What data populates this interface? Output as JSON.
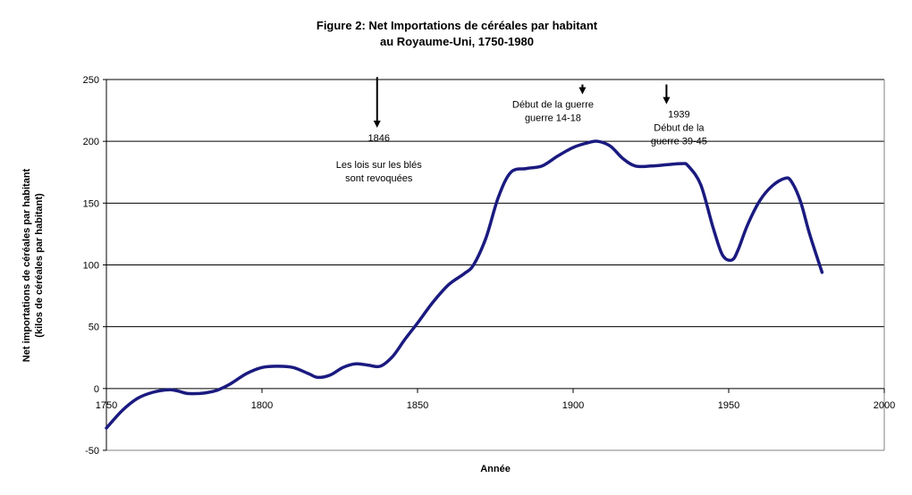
{
  "chart_data": {
    "type": "line",
    "title": [
      "Figure 2: Net Importations de céréales par habitant",
      "au Royaume-Uni, 1750-1980"
    ],
    "xlabel": "Année",
    "ylabel": [
      "Net importations de céréales par habitant",
      "(kilos de céréales par habitant)"
    ],
    "xlim": [
      1750,
      2000
    ],
    "ylim": [
      -50,
      250
    ],
    "xticks": [
      1750,
      1800,
      1850,
      1900,
      1950,
      2000
    ],
    "yticks": [
      -50,
      0,
      50,
      100,
      150,
      200,
      250
    ],
    "grid": "horizontal",
    "colors": {
      "line": "#1a1a80",
      "grid": "#000000",
      "axis": "#808080"
    },
    "series": [
      {
        "x": [
          1750,
          1755,
          1760,
          1765,
          1770,
          1773,
          1776,
          1780,
          1783,
          1786,
          1790,
          1795,
          1800,
          1805,
          1810,
          1815,
          1818,
          1822,
          1826,
          1830,
          1834,
          1838,
          1842,
          1846,
          1850,
          1855,
          1860,
          1865,
          1868,
          1872,
          1876,
          1880,
          1885,
          1890,
          1895,
          1900,
          1905,
          1908,
          1912,
          1916,
          1920,
          1925,
          1930,
          1935,
          1937,
          1941,
          1945,
          1948,
          1951,
          1953,
          1956,
          1960,
          1964,
          1968,
          1970,
          1973,
          1976,
          1980
        ],
        "y": [
          -32,
          -18,
          -8,
          -3,
          -1,
          -2,
          -4,
          -4,
          -3,
          -1,
          4,
          12,
          17,
          18,
          17,
          12,
          9,
          11,
          17,
          20,
          19,
          18,
          26,
          40,
          53,
          70,
          84,
          93,
          100,
          122,
          155,
          175,
          178,
          180,
          188,
          195,
          199,
          200,
          196,
          186,
          180,
          180,
          181,
          182,
          180,
          165,
          130,
          108,
          104,
          112,
          132,
          152,
          164,
          170,
          168,
          152,
          125,
          94
        ]
      }
    ],
    "annotations": [
      {
        "x": 1837,
        "arrow_from": 252,
        "arrow_to": 211,
        "lines": [
          "1846",
          "",
          "Les lois sur les blés",
          "sont revoquées"
        ]
      },
      {
        "x": 1903,
        "arrow_from": 246,
        "arrow_to": 238,
        "lines": [
          "Début de la guerre",
          "guerre 14-18"
        ]
      },
      {
        "x": 1930,
        "arrow_from": 246,
        "arrow_to": 230,
        "lines": [
          "1939",
          "Début de la",
          "guerre 39-45"
        ]
      }
    ]
  }
}
